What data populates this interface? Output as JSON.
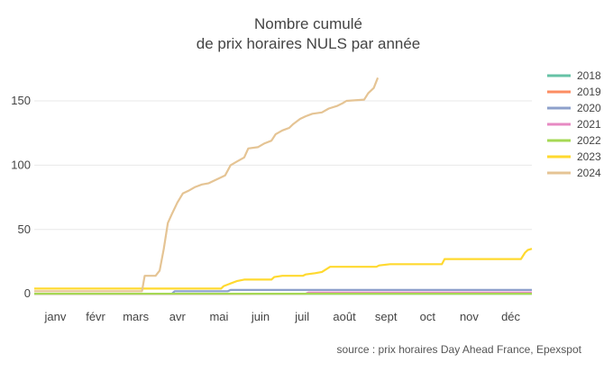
{
  "chart_data": {
    "type": "line",
    "title_line1": "Nombre cumulé",
    "title_line2": "de prix horaires NULS par année",
    "xlabel": "",
    "ylabel": "",
    "x_tick_labels": [
      "janv",
      "févr",
      "mars",
      "avr",
      "mai",
      "juin",
      "juil",
      "août",
      "sept",
      "oct",
      "nov",
      "déc"
    ],
    "x_range_days": [
      1,
      366
    ],
    "y_ticks": [
      0,
      50,
      100,
      150
    ],
    "ylim": [
      -2,
      178
    ],
    "grid": "horizontal",
    "legend_position": "right",
    "source": "source : prix horaires Day Ahead France, Epexspot",
    "series": [
      {
        "name": "2018",
        "color": "#66c2a5",
        "points": [
          [
            1,
            0
          ],
          [
            366,
            0
          ]
        ]
      },
      {
        "name": "2019",
        "color": "#fc8d62",
        "points": [
          [
            1,
            0
          ],
          [
            160,
            0
          ]
        ]
      },
      {
        "name": "2020",
        "color": "#8da0cb",
        "points": [
          [
            1,
            0
          ],
          [
            102,
            0
          ],
          [
            104,
            2
          ],
          [
            143,
            2
          ],
          [
            145,
            3
          ],
          [
            366,
            3
          ]
        ]
      },
      {
        "name": "2021",
        "color": "#e78ac3",
        "points": [
          [
            1,
            0
          ],
          [
            200,
            0
          ],
          [
            202,
            1
          ],
          [
            366,
            1
          ]
        ]
      },
      {
        "name": "2022",
        "color": "#a6d854",
        "points": [
          [
            1,
            0
          ],
          [
            366,
            0
          ]
        ]
      },
      {
        "name": "2023",
        "color": "#ffd92f",
        "points": [
          [
            1,
            4
          ],
          [
            138,
            4
          ],
          [
            140,
            6
          ],
          [
            145,
            8
          ],
          [
            150,
            10
          ],
          [
            155,
            11
          ],
          [
            175,
            11
          ],
          [
            177,
            13
          ],
          [
            183,
            14
          ],
          [
            198,
            14
          ],
          [
            200,
            15
          ],
          [
            207,
            16
          ],
          [
            212,
            17
          ],
          [
            218,
            21
          ],
          [
            252,
            21
          ],
          [
            254,
            22
          ],
          [
            262,
            23
          ],
          [
            300,
            23
          ],
          [
            302,
            27
          ],
          [
            358,
            27
          ],
          [
            361,
            32
          ],
          [
            363,
            34
          ],
          [
            366,
            35
          ]
        ]
      },
      {
        "name": "2024",
        "color": "#e5c494",
        "points": [
          [
            1,
            2
          ],
          [
            80,
            2
          ],
          [
            82,
            14
          ],
          [
            90,
            14
          ],
          [
            93,
            18
          ],
          [
            96,
            35
          ],
          [
            99,
            55
          ],
          [
            102,
            62
          ],
          [
            106,
            71
          ],
          [
            110,
            78
          ],
          [
            114,
            80
          ],
          [
            119,
            83
          ],
          [
            124,
            85
          ],
          [
            129,
            86
          ],
          [
            133,
            88
          ],
          [
            137,
            90
          ],
          [
            141,
            92
          ],
          [
            145,
            100
          ],
          [
            150,
            103
          ],
          [
            155,
            106
          ],
          [
            158,
            113
          ],
          [
            165,
            114
          ],
          [
            170,
            117
          ],
          [
            175,
            119
          ],
          [
            178,
            124
          ],
          [
            183,
            127
          ],
          [
            188,
            129
          ],
          [
            191,
            132
          ],
          [
            196,
            136
          ],
          [
            200,
            138
          ],
          [
            205,
            140
          ],
          [
            212,
            141
          ],
          [
            217,
            144
          ],
          [
            223,
            146
          ],
          [
            227,
            148
          ],
          [
            230,
            150
          ],
          [
            243,
            151
          ],
          [
            246,
            156
          ],
          [
            250,
            160
          ],
          [
            253,
            168
          ]
        ]
      }
    ]
  }
}
